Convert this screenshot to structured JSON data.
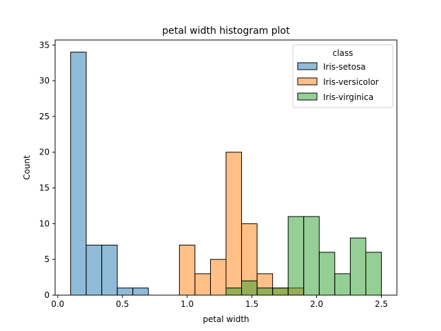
{
  "chart_data": {
    "type": "bar",
    "title": "petal width histogram plot",
    "xlabel": "petal width",
    "ylabel": "Count",
    "xlim": [
      -0.02,
      2.62
    ],
    "ylim": [
      0,
      35.7
    ],
    "xticks": [
      0.0,
      0.5,
      1.0,
      1.5,
      2.0,
      2.5
    ],
    "xtick_labels": [
      "0.0",
      "0.5",
      "1.0",
      "1.5",
      "2.0",
      "2.5"
    ],
    "yticks": [
      0,
      5,
      10,
      15,
      20,
      25,
      30,
      35
    ],
    "ytick_labels": [
      "0",
      "5",
      "10",
      "15",
      "20",
      "25",
      "30",
      "35"
    ],
    "bin_edges": [
      0.1,
      0.22,
      0.34,
      0.46,
      0.58,
      0.7,
      0.82,
      0.94,
      1.06,
      1.18,
      1.3,
      1.42,
      1.54,
      1.66,
      1.78,
      1.9,
      2.02,
      2.14,
      2.26,
      2.38,
      2.5
    ],
    "legend": {
      "title": "class",
      "position": "upper right"
    },
    "series": [
      {
        "name": "Iris-setosa",
        "color": "#1f77b4",
        "values": [
          34,
          7,
          7,
          1,
          1,
          0,
          0,
          0,
          0,
          0,
          0,
          0,
          0,
          0,
          0,
          0,
          0,
          0,
          0,
          0
        ]
      },
      {
        "name": "Iris-versicolor",
        "color": "#ff7f0e",
        "values": [
          0,
          0,
          0,
          0,
          0,
          0,
          0,
          7,
          3,
          5,
          20,
          10,
          3,
          1,
          1,
          0,
          0,
          0,
          0,
          0
        ]
      },
      {
        "name": "Iris-virginica",
        "color": "#2ca02c",
        "values": [
          0,
          0,
          0,
          0,
          0,
          0,
          0,
          0,
          0,
          0,
          1,
          2,
          1,
          1,
          11,
          11,
          6,
          3,
          8,
          6
        ]
      }
    ],
    "grid": false
  }
}
